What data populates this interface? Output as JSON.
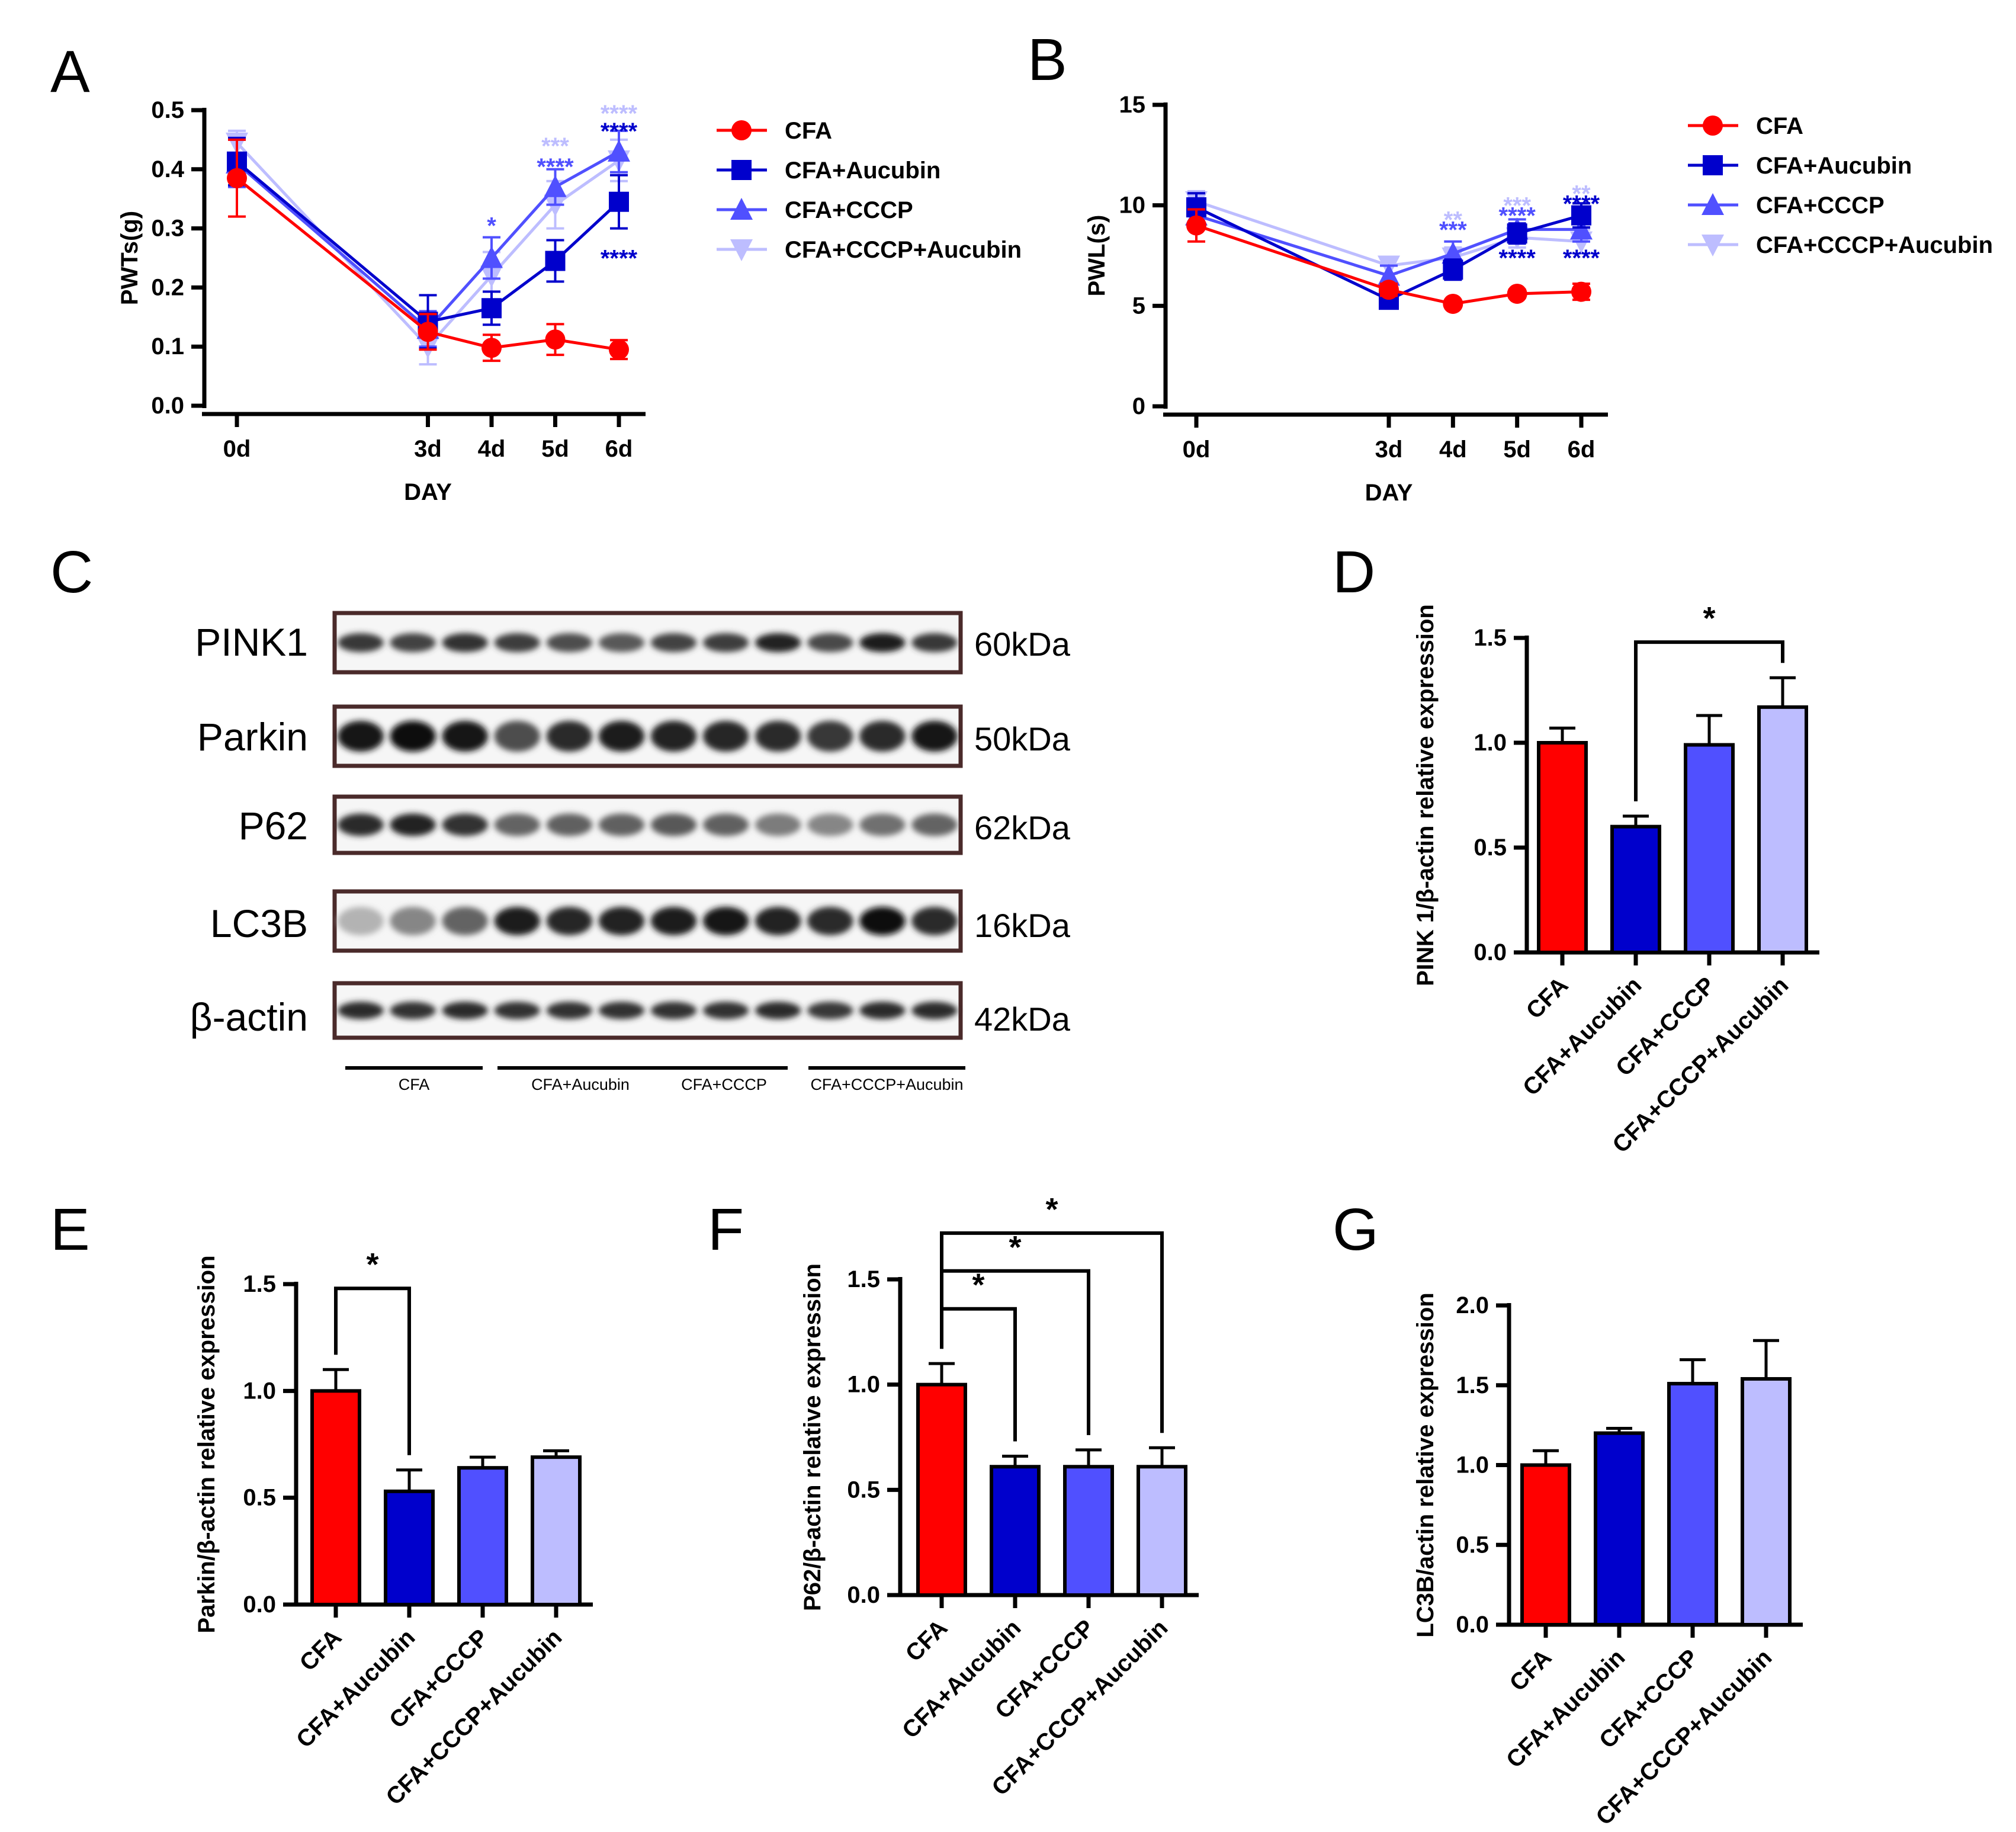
{
  "colors": {
    "CFA": "#ff0000",
    "CFA+Aucubin": "#0000cc",
    "CFA+CCCP": "#5050ff",
    "CFA+CCCP+Aucubin": "#bdbdff"
  },
  "groups": [
    "CFA",
    "CFA+Aucubin",
    "CFA+CCCP",
    "CFA+CCCP+Aucubin"
  ],
  "chart_data": [
    {
      "id": "A",
      "panel_letter": "A",
      "type": "line",
      "xlabel": "DAY",
      "ylabel": "PWTs(g)",
      "x": [
        0,
        3,
        4,
        5,
        6
      ],
      "x_ticks": [
        "0d",
        "3d",
        "4d",
        "5d",
        "6d"
      ],
      "ylim": [
        0,
        0.5
      ],
      "y_ticks": [
        "0.0",
        "0.1",
        "0.2",
        "0.3",
        "0.4",
        "0.5"
      ],
      "legend": [
        "CFA",
        "CFA+Aucubin",
        "CFA+CCCP",
        "CFA+CCCP+Aucubin"
      ],
      "legend_position": "right",
      "series": [
        {
          "name": "CFA",
          "marker": "circle",
          "values": [
            0.385,
            0.125,
            0.098,
            0.112,
            0.095
          ],
          "errors": [
            0.065,
            0.03,
            0.022,
            0.026,
            0.016
          ]
        },
        {
          "name": "CFA+Aucubin",
          "marker": "square",
          "values": [
            0.413,
            0.142,
            0.165,
            0.245,
            0.345
          ],
          "errors": [
            0.04,
            0.045,
            0.028,
            0.035,
            0.045
          ]
        },
        {
          "name": "CFA+CCCP",
          "marker": "triangle",
          "values": [
            0.41,
            0.13,
            0.25,
            0.37,
            0.43
          ],
          "errors": [
            0.04,
            0.03,
            0.035,
            0.03,
            0.035
          ]
        },
        {
          "name": "CFA+CCCP+Aucubin",
          "marker": "triangle-down",
          "values": [
            0.445,
            0.1,
            0.22,
            0.34,
            0.415
          ],
          "errors": [
            0.02,
            0.03,
            0.04,
            0.04,
            0.035
          ]
        }
      ],
      "annotations": [
        {
          "text": "*",
          "x": 4,
          "y": 0.305,
          "series": "CFA+CCCP"
        },
        {
          "text": "***",
          "x": 5,
          "y": 0.44,
          "series": "CFA+CCCP+Aucubin"
        },
        {
          "text": "****",
          "x": 5,
          "y": 0.405,
          "series": "CFA+CCCP"
        },
        {
          "text": "****",
          "x": 6,
          "y": 0.495,
          "series": "CFA+CCCP+Aucubin"
        },
        {
          "text": "****",
          "x": 6,
          "y": 0.465,
          "series": "CFA+Aucubin"
        },
        {
          "text": "****",
          "x": 6,
          "y": 0.25,
          "series": "CFA+Aucubin"
        }
      ]
    },
    {
      "id": "B",
      "panel_letter": "B",
      "type": "line",
      "xlabel": "DAY",
      "ylabel": "PWL(s)",
      "x": [
        0,
        3,
        4,
        5,
        6
      ],
      "x_ticks": [
        "0d",
        "3d",
        "4d",
        "5d",
        "6d"
      ],
      "ylim": [
        0,
        15
      ],
      "y_ticks": [
        "0",
        "5",
        "10",
        "15"
      ],
      "legend": [
        "CFA",
        "CFA+Aucubin",
        "CFA+CCCP",
        "CFA+CCCP+Aucubin"
      ],
      "legend_position": "right",
      "series": [
        {
          "name": "CFA",
          "marker": "circle",
          "values": [
            9.0,
            5.8,
            5.1,
            5.6,
            5.7
          ],
          "errors": [
            0.8,
            0.3,
            0.15,
            0.2,
            0.4
          ]
        },
        {
          "name": "CFA+Aucubin",
          "marker": "square",
          "values": [
            9.9,
            5.3,
            6.8,
            8.6,
            9.5
          ],
          "errors": [
            0.7,
            0.3,
            0.5,
            0.5,
            0.6
          ]
        },
        {
          "name": "CFA+CCCP",
          "marker": "triangle",
          "values": [
            9.5,
            6.5,
            7.6,
            8.8,
            8.8
          ],
          "errors": [
            0.6,
            0.5,
            0.6,
            0.5,
            0.6
          ]
        },
        {
          "name": "CFA+CCCP+Aucubin",
          "marker": "triangle-down",
          "values": [
            10.2,
            7.0,
            7.4,
            8.4,
            8.2
          ],
          "errors": [
            0.5,
            0.4,
            0.5,
            0.5,
            0.6
          ]
        }
      ],
      "annotations": [
        {
          "text": "**",
          "x": 4,
          "y": 9.3,
          "series": "CFA+CCCP+Aucubin"
        },
        {
          "text": "***",
          "x": 4,
          "y": 8.8,
          "series": "CFA+CCCP"
        },
        {
          "text": "***",
          "x": 5,
          "y": 10.0,
          "series": "CFA+CCCP+Aucubin"
        },
        {
          "text": "****",
          "x": 5,
          "y": 9.5,
          "series": "CFA+CCCP"
        },
        {
          "text": "****",
          "x": 5,
          "y": 7.4,
          "series": "CFA+Aucubin"
        },
        {
          "text": "**",
          "x": 6,
          "y": 10.6,
          "series": "CFA+CCCP+Aucubin"
        },
        {
          "text": "****",
          "x": 6,
          "y": 10.1,
          "series": "CFA+Aucubin"
        },
        {
          "text": "****",
          "x": 6,
          "y": 7.4,
          "series": "CFA+Aucubin"
        }
      ]
    },
    {
      "id": "D",
      "panel_letter": "D",
      "type": "bar",
      "ylabel": "PINK 1/β-actin relative expression",
      "categories": [
        "CFA",
        "CFA+Aucubin",
        "CFA+CCCP",
        "CFA+CCCP+Aucubin"
      ],
      "values": [
        1.0,
        0.6,
        0.99,
        1.17
      ],
      "errors": [
        0.07,
        0.05,
        0.14,
        0.14
      ],
      "ylim": [
        0,
        1.5
      ],
      "y_ticks": [
        "0.0",
        "0.5",
        "1.0",
        "1.5"
      ],
      "significance": [
        {
          "from": 1,
          "to": 3,
          "text": "*",
          "y": 1.48
        }
      ]
    },
    {
      "id": "E",
      "panel_letter": "E",
      "type": "bar",
      "ylabel": "Parkin/β-actin relative expression",
      "categories": [
        "CFA",
        "CFA+Aucubin",
        "CFA+CCCP",
        "CFA+CCCP+Aucubin"
      ],
      "values": [
        1.0,
        0.53,
        0.64,
        0.69
      ],
      "errors": [
        0.1,
        0.1,
        0.05,
        0.03
      ],
      "ylim": [
        0,
        1.5
      ],
      "y_ticks": [
        "0.0",
        "0.5",
        "1.0",
        "1.5"
      ],
      "significance": [
        {
          "from": 0,
          "to": 1,
          "text": "*",
          "y": 1.48
        }
      ]
    },
    {
      "id": "F",
      "panel_letter": "F",
      "type": "bar",
      "ylabel": "P62/β-actin relative expression",
      "categories": [
        "CFA",
        "CFA+Aucubin",
        "CFA+CCCP",
        "CFA+CCCP+Aucubin"
      ],
      "values": [
        1.0,
        0.61,
        0.61,
        0.61
      ],
      "errors": [
        0.1,
        0.05,
        0.08,
        0.09
      ],
      "ylim": [
        0,
        1.5
      ],
      "y_ticks": [
        "0.0",
        "0.5",
        "1.0",
        "1.5"
      ],
      "significance": [
        {
          "from": 0,
          "to": 1,
          "text": "*",
          "y": 1.36
        },
        {
          "from": 0,
          "to": 2,
          "text": "*",
          "y": 1.54
        },
        {
          "from": 0,
          "to": 3,
          "text": "*",
          "y": 1.72
        }
      ]
    },
    {
      "id": "G",
      "panel_letter": "G",
      "type": "bar",
      "ylabel": "LC3B/actin relative expression",
      "categories": [
        "CFA",
        "CFA+Aucubin",
        "CFA+CCCP",
        "CFA+CCCP+Aucubin"
      ],
      "values": [
        1.0,
        1.2,
        1.51,
        1.54
      ],
      "errors": [
        0.09,
        0.03,
        0.15,
        0.24
      ],
      "ylim": [
        0,
        2.0
      ],
      "y_ticks": [
        "0.0",
        "0.5",
        "1.0",
        "1.5",
        "2.0"
      ],
      "significance": []
    }
  ],
  "blot": {
    "panel_letter": "C",
    "rows": [
      {
        "protein": "PINK1",
        "kda": "60kDa",
        "intensity": [
          0.8,
          0.75,
          0.82,
          0.78,
          0.7,
          0.65,
          0.75,
          0.78,
          0.9,
          0.72,
          0.92,
          0.8
        ],
        "thickness": 0.32
      },
      {
        "protein": "Parkin",
        "kda": "50kDa",
        "intensity": [
          0.95,
          1.0,
          0.95,
          0.7,
          0.85,
          0.92,
          0.9,
          0.88,
          0.85,
          0.8,
          0.85,
          0.95
        ],
        "thickness": 0.52
      },
      {
        "protein": "P62",
        "kda": "62kDa",
        "intensity": [
          0.85,
          0.9,
          0.82,
          0.6,
          0.62,
          0.62,
          0.65,
          0.62,
          0.5,
          0.45,
          0.55,
          0.6
        ],
        "thickness": 0.4
      },
      {
        "protein": "LC3B",
        "kda": "16kDa",
        "intensity": [
          0.25,
          0.45,
          0.6,
          0.92,
          0.88,
          0.9,
          0.92,
          0.95,
          0.9,
          0.85,
          0.98,
          0.85
        ],
        "thickness": 0.48
      },
      {
        "protein": "β-actin",
        "kda": "42kDa",
        "intensity": [
          0.85,
          0.82,
          0.85,
          0.82,
          0.82,
          0.82,
          0.82,
          0.82,
          0.85,
          0.8,
          0.85,
          0.85
        ],
        "thickness": 0.32
      }
    ],
    "group_labels": [
      "CFA",
      "CFA+Aucubin",
      "CFA+CCCP",
      "CFA+CCCP+Aucubin"
    ]
  }
}
